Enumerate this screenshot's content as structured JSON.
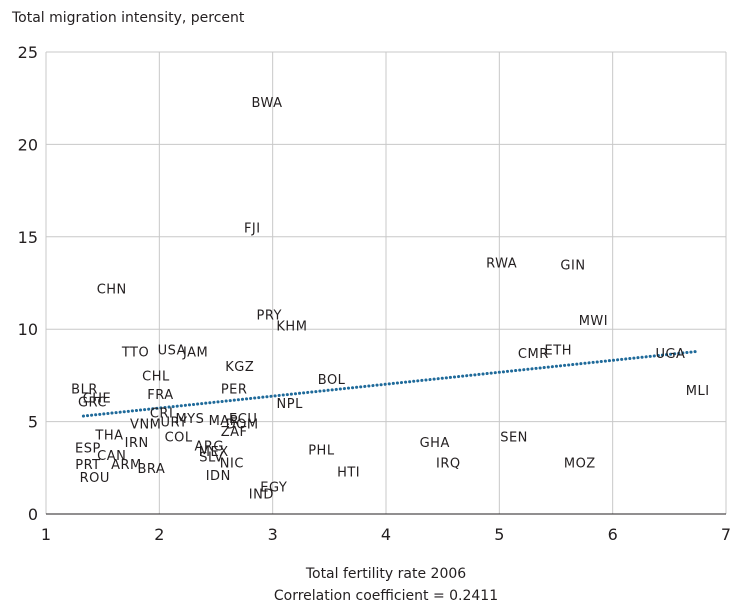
{
  "chart_data": {
    "type": "scatter",
    "title": "Total migration intensity, percent",
    "x_label": "Total fertility rate 2006",
    "subtitle": "Correlation coefficient = 0.2411",
    "xlim": [
      1,
      7
    ],
    "xticks": [
      1,
      2,
      3,
      4,
      5,
      6,
      7
    ],
    "ylim": [
      0,
      25
    ],
    "yticks": [
      0,
      5,
      10,
      15,
      20,
      25
    ],
    "grid": true,
    "labels": [
      "BWA",
      "FJI",
      "RWA",
      "GIN",
      "CHN",
      "PRY",
      "KHM",
      "MWI",
      "TTO",
      "USA",
      "JAM",
      "CMR",
      "ETH",
      "UGA",
      "KGZ",
      "CHL",
      "BOL",
      "PER",
      "FRA",
      "BLR",
      "MLI",
      "CHE",
      "GRC",
      "NPL",
      "CRI",
      "MYS",
      "MAR",
      "ECU",
      "VNM",
      "URY",
      "DOM",
      "ZAF",
      "THA",
      "COL",
      "IRN",
      "ARG",
      "MEX",
      "ESP",
      "PHL",
      "GHA",
      "SEN",
      "CAN",
      "SLV",
      "NIC",
      "IRQ",
      "MOZ",
      "PRT",
      "ARM",
      "BRA",
      "HTI",
      "IDN",
      "ROU",
      "EGY",
      "IND"
    ],
    "x": [
      2.95,
      2.82,
      5.02,
      5.65,
      1.58,
      2.97,
      3.17,
      5.83,
      1.79,
      2.11,
      2.32,
      5.3,
      5.52,
      6.51,
      2.71,
      1.97,
      3.52,
      2.66,
      2.01,
      1.34,
      6.75,
      1.45,
      1.41,
      3.15,
      2.02,
      2.27,
      2.57,
      2.74,
      1.88,
      2.13,
      2.73,
      2.66,
      1.56,
      2.17,
      1.8,
      2.44,
      2.48,
      1.37,
      3.43,
      4.43,
      5.13,
      1.58,
      2.46,
      2.64,
      4.55,
      5.71,
      1.37,
      1.71,
      1.93,
      3.67,
      2.52,
      1.43,
      3.01,
      2.9
    ],
    "y": [
      22.3,
      15.5,
      13.6,
      13.5,
      12.2,
      10.8,
      10.2,
      10.5,
      8.8,
      8.9,
      8.8,
      8.7,
      8.9,
      8.7,
      8.0,
      7.5,
      7.3,
      6.8,
      6.5,
      6.8,
      6.7,
      6.3,
      6.1,
      6.0,
      5.5,
      5.2,
      5.1,
      5.2,
      4.9,
      5.0,
      4.9,
      4.5,
      4.3,
      4.2,
      3.9,
      3.7,
      3.4,
      3.6,
      3.5,
      3.9,
      4.2,
      3.2,
      3.1,
      2.8,
      2.8,
      2.8,
      2.7,
      2.7,
      2.5,
      2.3,
      2.1,
      2.0,
      1.5,
      1.1
    ],
    "trendline": {
      "color": "#1f6a9a",
      "x": [
        1.33,
        6.75
      ],
      "y": [
        5.3,
        8.8
      ]
    }
  }
}
